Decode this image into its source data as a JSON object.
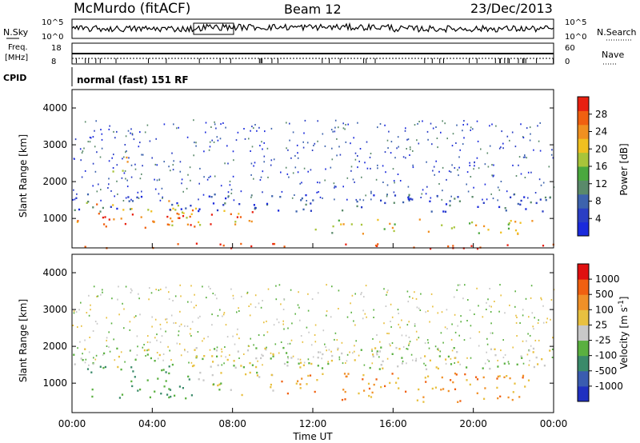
{
  "header": {
    "station": "McMurdo (fitACF)",
    "beam": "Beam 12",
    "date": "23/Dec/2013"
  },
  "aux_panels": {
    "nsky_label": "N.Sky",
    "nsky_ticks": [
      "10^5",
      "10^0"
    ],
    "nsearch_label": "N.Search",
    "nsearch_ticks": [
      "10^5",
      "10^0"
    ],
    "freq_label": "Freq.",
    "freq_unit": "[MHz]",
    "freq_ticks": [
      "18",
      "8"
    ],
    "nave_label": "Nave",
    "nave_ticks": [
      "60",
      "0"
    ],
    "cpid_label": "CPID",
    "cpid_value": "normal (fast) 151 RF"
  },
  "colors": {
    "power_scale": [
      "#1a2adc",
      "#2a3ec4",
      "#3d63ad",
      "#5a8a6a",
      "#4aa83e",
      "#a8c43a",
      "#f0c020",
      "#f09020",
      "#f06010",
      "#e82010"
    ],
    "velocity_scale": [
      "#2030c0",
      "#3a5cb0",
      "#3a8a6a",
      "#5ab040",
      "#c8c8c8",
      "#e8c040",
      "#f09028",
      "#f06010",
      "#e01010"
    ]
  },
  "chart_data": [
    {
      "type": "heatmap",
      "name": "power-panel",
      "ylabel": "Slant Range [km]",
      "yticks": [
        "1000",
        "2000",
        "3000",
        "4000"
      ],
      "ylim": [
        200,
        4500
      ],
      "xticks": [
        "00:00",
        "04:00",
        "08:00",
        "12:00",
        "16:00",
        "20:00",
        "00:00"
      ],
      "xlim": [
        0,
        24
      ],
      "colorbar": {
        "label": "Power [dB]",
        "ticks": [
          "4",
          "8",
          "12",
          "16",
          "20",
          "24",
          "28"
        ]
      },
      "regions": [
        {
          "t0": 0.2,
          "t1": 6,
          "r0": 700,
          "r1": 1500,
          "level": "high"
        },
        {
          "t0": 4,
          "t1": 10,
          "r0": 800,
          "r1": 1300,
          "level": "high"
        },
        {
          "t0": 0,
          "t1": 24,
          "r0": 1200,
          "r1": 1700,
          "level": "low"
        },
        {
          "t0": 0,
          "t1": 24,
          "r0": 200,
          "r1": 350,
          "level": "max"
        },
        {
          "t0": 12,
          "t1": 23,
          "r0": 600,
          "r1": 1000,
          "level": "mid"
        },
        {
          "t0": 2,
          "t1": 3,
          "r0": 2300,
          "r1": 2800,
          "level": "mid"
        }
      ]
    },
    {
      "type": "heatmap",
      "name": "velocity-panel",
      "ylabel": "Slant Range [km]",
      "yticks": [
        "1000",
        "2000",
        "3000",
        "4000"
      ],
      "ylim": [
        200,
        4500
      ],
      "xticks": [
        "00:00",
        "04:00",
        "08:00",
        "12:00",
        "16:00",
        "20:00",
        "00:00"
      ],
      "xlim": [
        0,
        24
      ],
      "xlabel": "Time UT",
      "colorbar": {
        "label": "Velocity [m s^-1]",
        "ticks": [
          "1000",
          "500",
          "100",
          "25",
          "-25",
          "-100",
          "-500",
          "-1000"
        ]
      },
      "regions": [
        {
          "t0": 0.5,
          "t1": 6,
          "r0": 600,
          "r1": 1500,
          "level": "toward"
        },
        {
          "t0": 6,
          "t1": 10,
          "r0": 700,
          "r1": 1800,
          "level": "near-zero"
        },
        {
          "t0": 10,
          "t1": 23,
          "r0": 500,
          "r1": 1300,
          "level": "away"
        },
        {
          "t0": 0,
          "t1": 24,
          "r0": 1400,
          "r1": 2000,
          "level": "near-zero"
        }
      ]
    }
  ],
  "axis": {
    "xlabel": "Time UT"
  }
}
